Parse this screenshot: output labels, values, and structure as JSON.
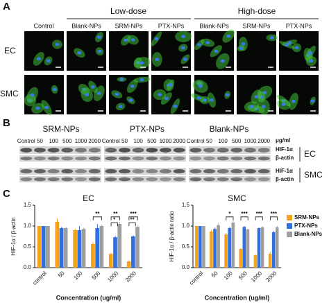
{
  "panel_a": {
    "label": "A",
    "groups": [
      "Low-dose",
      "High-dose"
    ],
    "columns": [
      "Control",
      "Blank-NPs",
      "SRM-NPs",
      "PTX-NPs",
      "Blank-NPs",
      "SRM-NPs",
      "PTX-NPs"
    ],
    "rows": [
      "EC",
      "SMC"
    ]
  },
  "panel_b": {
    "label": "B",
    "groups": [
      "SRM-NPs",
      "PTX-NPs",
      "Blank-NPs"
    ],
    "lanes": [
      "Control",
      "50",
      "100",
      "500",
      "1000",
      "2000"
    ],
    "unit": "μg/ml",
    "bands": [
      "HIF-1α",
      "β-actin"
    ],
    "cells": [
      "EC",
      "SMC"
    ]
  },
  "panel_c": {
    "label": "C"
  },
  "chart_data": [
    {
      "type": "bar",
      "title": "EC",
      "y_label": "HIF-1α / β-actin",
      "x_label": "Concentration (ug/ml)",
      "categories": [
        "control",
        "50",
        "100",
        "500",
        "1000",
        "2000"
      ],
      "series": [
        {
          "name": "SRM-NPs",
          "color": "#f5a31a",
          "values": [
            1.0,
            1.1,
            0.9,
            0.57,
            0.33,
            0.15
          ],
          "errors": [
            0,
            0.08,
            0.04,
            0.04,
            0.03,
            0.03
          ]
        },
        {
          "name": "PTX-NPs",
          "color": "#2f6fe0",
          "values": [
            1.0,
            0.95,
            0.9,
            0.95,
            0.73,
            0.75
          ],
          "errors": [
            0,
            0.03,
            0.1,
            0.1,
            0.03,
            0.03
          ]
        },
        {
          "name": "Blank-NPs",
          "color": "#9e9e9e",
          "values": [
            1.0,
            0.95,
            0.93,
            1.0,
            1.05,
            0.98
          ],
          "errors": [
            0,
            0.03,
            0.03,
            0.03,
            0.05,
            0.03
          ]
        }
      ],
      "ylim": [
        0,
        1.5
      ],
      "yticks": [
        {
          "value": 0,
          "label": "0.0"
        },
        {
          "value": 0.5,
          "label": "0.5"
        },
        {
          "value": 1,
          "label": "1.0"
        },
        {
          "value": 1.5,
          "label": "1.5"
        }
      ],
      "annotations": [
        {
          "text": "**",
          "category": "500"
        },
        {
          "text": "**",
          "category": "1000"
        },
        {
          "text": "*",
          "category": "1000"
        },
        {
          "text": "***",
          "category": "2000"
        },
        {
          "text": "**",
          "category": "2000"
        }
      ]
    },
    {
      "type": "bar",
      "title": "SMC",
      "y_label": "HIF-1α / β-actin ratio",
      "x_label": "Concentration (ug/ml)",
      "categories": [
        "control",
        "50",
        "100",
        "500",
        "1000",
        "2000"
      ],
      "series": [
        {
          "name": "SRM-NPs",
          "color": "#f5a31a",
          "values": [
            1.0,
            0.87,
            0.8,
            0.45,
            0.3,
            0.33
          ],
          "errors": [
            0,
            0.04,
            0.03,
            0.02,
            0.02,
            0.05
          ]
        },
        {
          "name": "PTX-NPs",
          "color": "#2f6fe0",
          "values": [
            1.0,
            0.93,
            0.95,
            0.98,
            0.95,
            0.85
          ],
          "errors": [
            0,
            0.03,
            0.03,
            0.02,
            0.02,
            0.03
          ]
        },
        {
          "name": "Blank-NPs",
          "color": "#9e9e9e",
          "values": [
            1.0,
            1.02,
            1.08,
            0.92,
            0.97,
            0.97
          ],
          "errors": [
            0,
            0.05,
            0.04,
            0.02,
            0.02,
            0.03
          ]
        }
      ],
      "ylim": [
        0,
        1.5
      ],
      "yticks": [
        {
          "value": 0,
          "label": "0.0"
        },
        {
          "value": 0.5,
          "label": "0.5"
        },
        {
          "value": 1,
          "label": "1.0"
        },
        {
          "value": 1.5,
          "label": "1.5"
        }
      ],
      "annotations": [
        {
          "text": "*",
          "category": "100"
        },
        {
          "text": "***",
          "category": "500"
        },
        {
          "text": "***",
          "category": "1000"
        },
        {
          "text": "***",
          "category": "2000"
        }
      ],
      "legend": "right"
    }
  ]
}
